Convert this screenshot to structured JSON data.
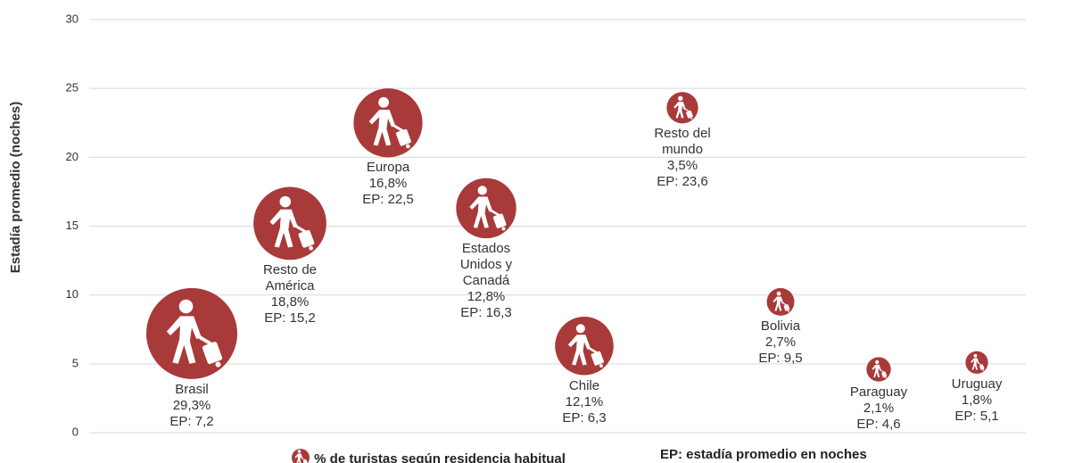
{
  "chart_data": {
    "type": "bubble",
    "y_label": "Estadía promedio (noches)",
    "categories": [
      "Brasil",
      "Resto de América",
      "Europa",
      "Estados Unidos y Canadá",
      "Chile",
      "Resto del mundo",
      "Bolivia",
      "Paraguay",
      "Uruguay"
    ],
    "series": [
      {
        "name": "% de turistas según residencia habitual",
        "color": "#a83a3a",
        "values": [
          7.2,
          15.2,
          22.5,
          16.3,
          6.3,
          23.6,
          9.5,
          4.6,
          5.1
        ],
        "value_labels": [
          "EP: 7,2",
          "EP: 15,2",
          "EP: 22,5",
          "EP: 16,3",
          "EP: 6,3",
          "EP: 23,6",
          "EP: 9,5",
          "EP: 4,6",
          "EP: 5,1"
        ],
        "sizes": [
          29.3,
          18.8,
          16.8,
          12.8,
          12.1,
          3.5,
          2.7,
          2.1,
          1.8
        ],
        "size_labels": [
          "29,3%",
          "18,8%",
          "16,8%",
          "12,8%",
          "12,1%",
          "3,5%",
          "2,7%",
          "2,1%",
          "1,8%"
        ]
      }
    ],
    "annotation": "EP: estadía promedio en noches",
    "ylim": [
      0,
      30
    ],
    "yticks": [
      0,
      5,
      10,
      15,
      20,
      25,
      30
    ],
    "grid": true
  }
}
